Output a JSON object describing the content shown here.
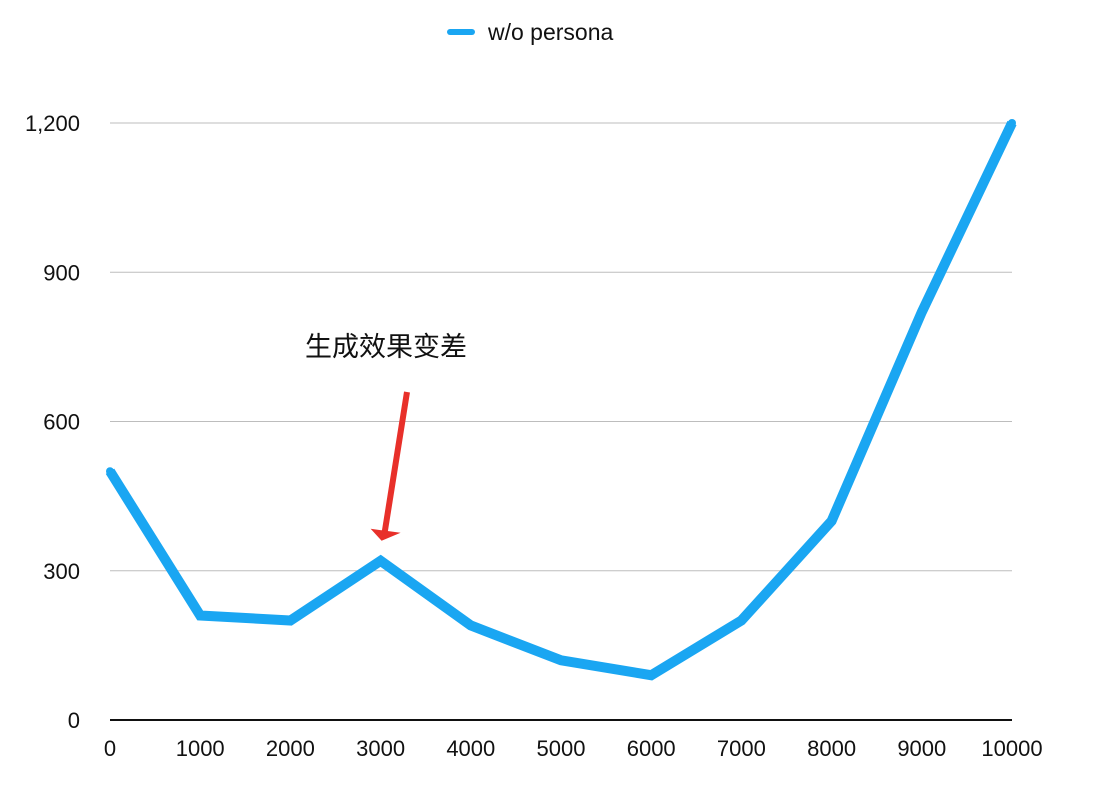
{
  "chart_data": {
    "type": "line",
    "title": "",
    "xlabel": "",
    "ylabel": "",
    "x": [
      0,
      1000,
      2000,
      3000,
      4000,
      5000,
      6000,
      7000,
      8000,
      9000,
      10000
    ],
    "x_tick_labels": [
      "0",
      "1000",
      "2000",
      "3000",
      "4000",
      "5000",
      "6000",
      "7000",
      "8000",
      "9000",
      "10000"
    ],
    "xlim": [
      0,
      10000
    ],
    "ylim": [
      0,
      1200
    ],
    "y_ticks": [
      0,
      300,
      600,
      900,
      1200
    ],
    "y_tick_labels": [
      "0",
      "300",
      "600",
      "900",
      "1,200"
    ],
    "grid": true,
    "legend_position": "top-center",
    "series": [
      {
        "name": "w/o persona",
        "color": "#1AA6F2",
        "x": [
          0,
          1000,
          2000,
          3000,
          4000,
          5000,
          6000,
          7000,
          8000,
          9000,
          10000
        ],
        "values": [
          500,
          210,
          200,
          320,
          190,
          120,
          90,
          200,
          400,
          820,
          1200
        ]
      }
    ],
    "annotations": [
      {
        "text": "生成效果变差",
        "arrow_color": "#E8302A",
        "points_to": {
          "x": 3000,
          "y": 320
        }
      }
    ]
  }
}
